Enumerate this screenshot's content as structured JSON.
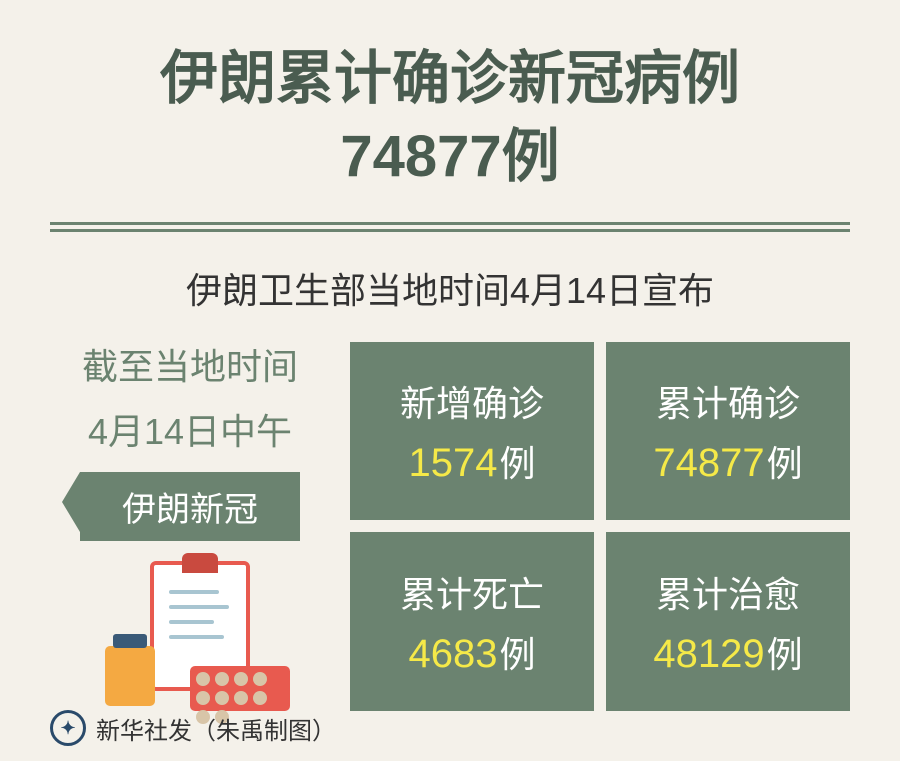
{
  "colors": {
    "background": "#f4f1ea",
    "olive": "#6b8370",
    "title_text": "#4a5c50",
    "body_text": "#333333",
    "highlight": "#f5e948",
    "accent_red": "#e85a4f",
    "accent_orange": "#f4a942"
  },
  "typography": {
    "headline_fontsize": 58,
    "subhead_fontsize": 36,
    "stat_label_fontsize": 36,
    "stat_number_fontsize": 40,
    "footer_fontsize": 24
  },
  "headline": {
    "line1": "伊朗累计确诊新冠病例",
    "line2": "74877例"
  },
  "subhead": "伊朗卫生部当地时间4月14日宣布",
  "left": {
    "line1": "截至当地时间",
    "line2": "4月14日中午",
    "tag": "伊朗新冠"
  },
  "stats": [
    {
      "label": "新增确诊",
      "value": "1574",
      "unit": "例"
    },
    {
      "label": "累计确诊",
      "value": "74877",
      "unit": "例"
    },
    {
      "label": "累计死亡",
      "value": "4683",
      "unit": "例"
    },
    {
      "label": "累计治愈",
      "value": "48129",
      "unit": "例"
    }
  ],
  "footer": {
    "source": "新华社发",
    "credit": "（朱禹制图）"
  }
}
